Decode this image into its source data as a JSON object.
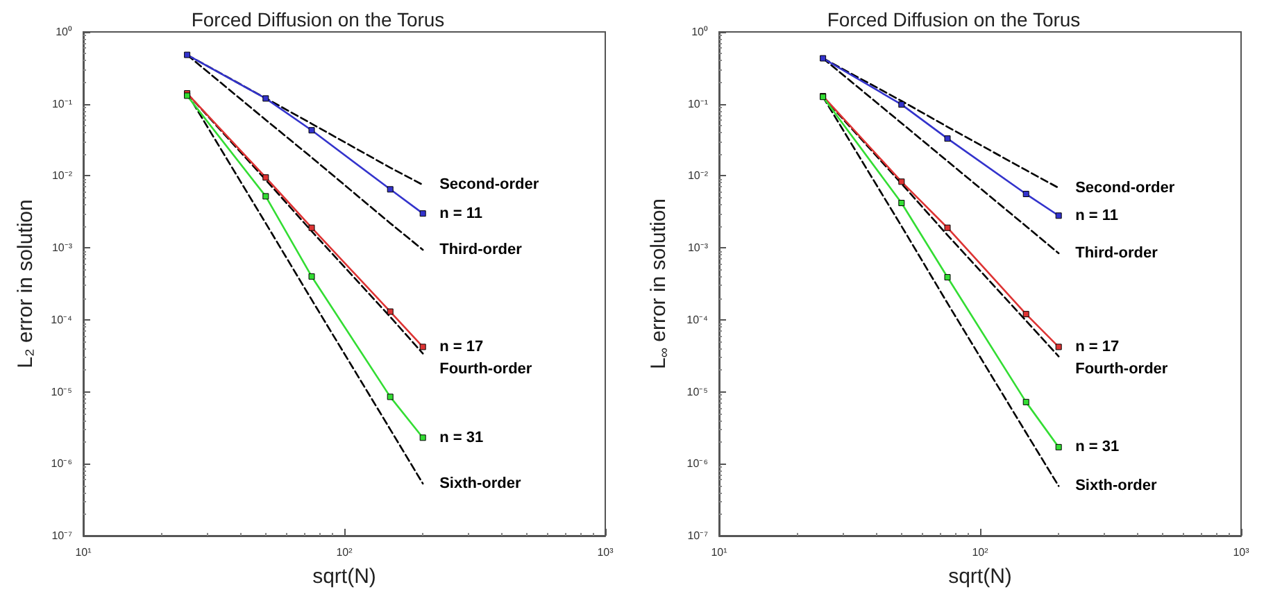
{
  "chart_data": [
    {
      "type": "line",
      "title": "Forced Diffusion on the Torus",
      "xlabel": "sqrt(N)",
      "ylabel": "L₂ error in solution",
      "log": "xy",
      "grid": false,
      "x": [
        25,
        50,
        75,
        150,
        200
      ],
      "xlim": [
        10,
        1000
      ],
      "xticks": [
        {
          "value": 10,
          "label": "10¹"
        },
        {
          "value": 100,
          "label": "10²"
        },
        {
          "value": 1000,
          "label": "10³"
        }
      ],
      "ylim": [
        1e-07,
        1
      ],
      "yticks": [
        {
          "value": 1e-07,
          "label": "10⁻⁷"
        },
        {
          "value": 1e-06,
          "label": "10⁻⁶"
        },
        {
          "value": 1e-05,
          "label": "10⁻⁵"
        },
        {
          "value": 0.0001,
          "label": "10⁻⁴"
        },
        {
          "value": 0.001,
          "label": "10⁻³"
        },
        {
          "value": 0.01,
          "label": "10⁻²"
        },
        {
          "value": 0.1,
          "label": "10⁻¹"
        },
        {
          "value": 1,
          "label": "10⁰"
        }
      ],
      "series": [
        {
          "name": "Second-order",
          "color": "#000000",
          "values": [
            0.48,
            0.12,
            0.053,
            0.013,
            0.0075
          ],
          "line_style": "dashed"
        },
        {
          "name": "Third-order",
          "color": "#000000",
          "values": [
            0.48,
            0.06,
            0.018,
            0.0022,
            0.00094
          ],
          "line_style": "dashed"
        },
        {
          "name": "Fourth-order",
          "color": "#000000",
          "values": [
            0.14,
            0.0088,
            0.0017,
            0.00011,
            3.4e-05
          ],
          "line_style": "dashed"
        },
        {
          "name": "Sixth-order",
          "color": "#000000",
          "values": [
            0.14,
            0.0022,
            0.00019,
            3e-06,
            5.3e-07
          ],
          "line_style": "dashed"
        },
        {
          "name": "n = 11",
          "color": "#3333cc",
          "values": [
            0.48,
            0.119,
            0.043,
            0.0065,
            0.003
          ],
          "line_style": "solid",
          "marker": "square"
        },
        {
          "name": "n = 17",
          "color": "#dd3333",
          "values": [
            0.14,
            0.0095,
            0.0019,
            0.00013,
            4.2e-05
          ],
          "line_style": "solid",
          "marker": "square"
        },
        {
          "name": "n = 31",
          "color": "#33dd33",
          "values": [
            0.13,
            0.0052,
            0.0004,
            8.5e-06,
            2.3e-06
          ],
          "line_style": "solid",
          "marker": "square"
        }
      ]
    },
    {
      "type": "line",
      "title": "Forced Diffusion on the Torus",
      "xlabel": "sqrt(N)",
      "ylabel": "L$_{∞}$ error in solution",
      "log": "xy",
      "grid": false,
      "x": [
        25,
        50,
        75,
        150,
        200
      ],
      "xlim": [
        10,
        1000
      ],
      "xticks": [
        {
          "value": 10,
          "label": "10¹"
        },
        {
          "value": 100,
          "label": "10²"
        },
        {
          "value": 1000,
          "label": "10³"
        }
      ],
      "ylim": [
        1e-07,
        1
      ],
      "yticks": [
        {
          "value": 1e-07,
          "label": "10⁻⁷"
        },
        {
          "value": 1e-06,
          "label": "10⁻⁶"
        },
        {
          "value": 1e-05,
          "label": "10⁻⁵"
        },
        {
          "value": 0.0001,
          "label": "10⁻⁴"
        },
        {
          "value": 0.001,
          "label": "10⁻³"
        },
        {
          "value": 0.01,
          "label": "10⁻²"
        },
        {
          "value": 0.1,
          "label": "10⁻¹"
        },
        {
          "value": 1,
          "label": "10⁰"
        }
      ],
      "series": [
        {
          "name": "Second-order",
          "color": "#000000",
          "values": [
            0.43,
            0.11,
            0.048,
            0.012,
            0.0068
          ],
          "line_style": "dashed"
        },
        {
          "name": "Third-order",
          "color": "#000000",
          "values": [
            0.43,
            0.054,
            0.016,
            0.002,
            0.00084
          ],
          "line_style": "dashed"
        },
        {
          "name": "Fourth-order",
          "color": "#000000",
          "values": [
            0.125,
            0.0078,
            0.0015,
            9.7e-05,
            3.1e-05
          ],
          "line_style": "dashed"
        },
        {
          "name": "Sixth-order",
          "color": "#000000",
          "values": [
            0.125,
            0.002,
            0.00017,
            2.7e-06,
            4.9e-07
          ],
          "line_style": "dashed"
        },
        {
          "name": "n = 11",
          "color": "#3333cc",
          "values": [
            0.43,
            0.098,
            0.033,
            0.0056,
            0.0028
          ],
          "line_style": "solid",
          "marker": "square"
        },
        {
          "name": "n = 17",
          "color": "#dd3333",
          "values": [
            0.128,
            0.0083,
            0.0019,
            0.00012,
            4.2e-05
          ],
          "line_style": "solid",
          "marker": "square"
        },
        {
          "name": "n = 31",
          "color": "#33dd33",
          "values": [
            0.125,
            0.0042,
            0.00039,
            7.2e-06,
            1.7e-06
          ],
          "line_style": "solid",
          "marker": "square"
        }
      ]
    }
  ]
}
